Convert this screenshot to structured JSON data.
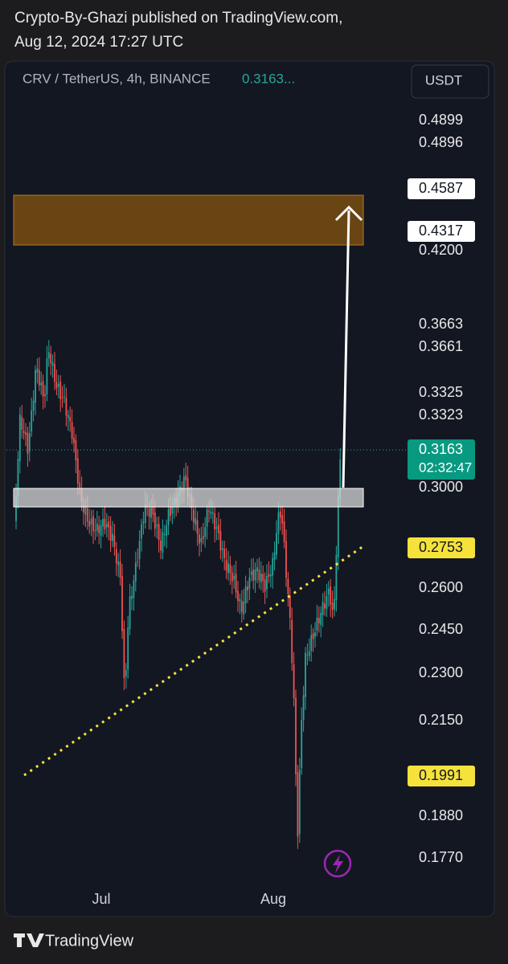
{
  "header": {
    "publisher": "Crypto-By-Ghazi published on TradingView.com,",
    "timestamp": "Aug 12, 2024 17:27 UTC"
  },
  "chart": {
    "symbol": "CRV / TetherUS, 4h, BINANCE",
    "last_price": "0.3163...",
    "currency": "USDT",
    "price_labels": [
      {
        "text": "0.4899",
        "style": "plain"
      },
      {
        "text": "0.4896",
        "style": "plain"
      },
      {
        "text": "0.4587",
        "style": "white"
      },
      {
        "text": "0.4317",
        "style": "white"
      },
      {
        "text": "0.4200",
        "style": "plain"
      },
      {
        "text": "0.3663",
        "style": "plain"
      },
      {
        "text": "0.3661",
        "style": "plain"
      },
      {
        "text": "0.3325",
        "style": "plain"
      },
      {
        "text": "0.3323",
        "style": "plain"
      },
      {
        "text": "0.3163",
        "style": "green"
      },
      {
        "text": "0.3000",
        "style": "plain"
      },
      {
        "text": "0.2753",
        "style": "yellow"
      },
      {
        "text": "0.2600",
        "style": "plain"
      },
      {
        "text": "0.2450",
        "style": "plain"
      },
      {
        "text": "0.2300",
        "style": "plain"
      },
      {
        "text": "0.2150",
        "style": "plain"
      },
      {
        "text": "0.1991",
        "style": "yellow"
      },
      {
        "text": "0.1880",
        "style": "plain"
      },
      {
        "text": "0.1770",
        "style": "plain"
      }
    ],
    "countdown": "02:32:47",
    "time_labels": [
      "Jul",
      "Aug"
    ]
  },
  "footer": {
    "brand": "TradingView"
  }
}
